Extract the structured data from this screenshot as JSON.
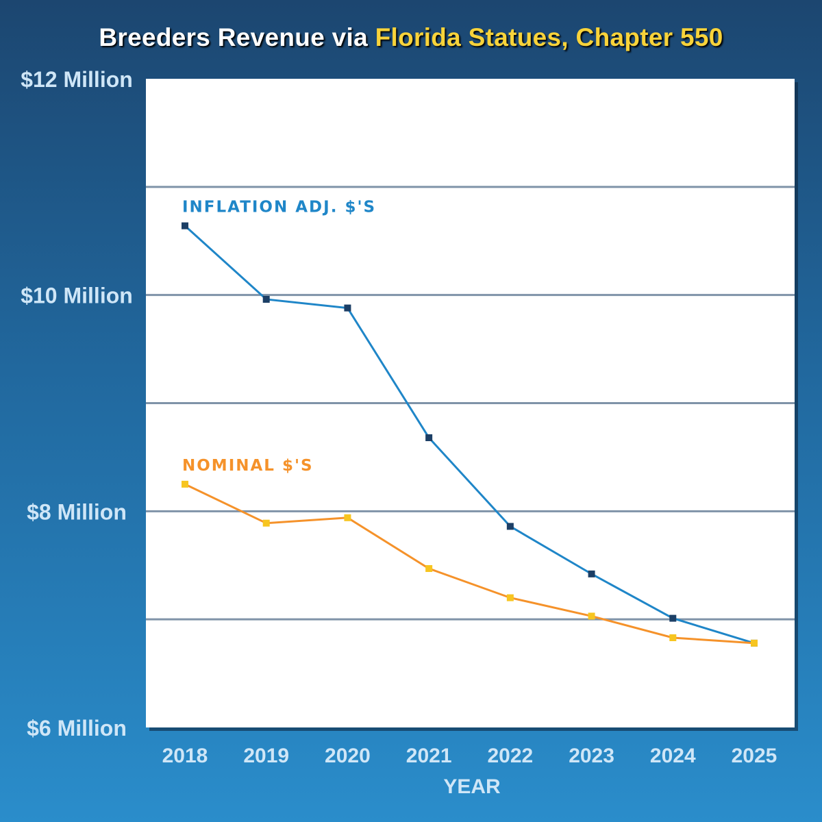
{
  "chart_data": {
    "type": "line",
    "title": "Breeders Revenue via",
    "title_highlight": "Florida Statues, Chapter 550",
    "xlabel": "YEAR",
    "ylabel": "",
    "x": [
      "2018",
      "2019",
      "2020",
      "2021",
      "2022",
      "2023",
      "2024",
      "2025"
    ],
    "ylim": [
      6,
      12
    ],
    "ytick_labels": [
      {
        "value": 12,
        "label": "$12 Million"
      },
      {
        "value": 10,
        "label": "$10 Million"
      },
      {
        "value": 8,
        "label": "$8 Million"
      },
      {
        "value": 6,
        "label": "$6 Million"
      }
    ],
    "gridlines": [
      7,
      8,
      9,
      10,
      11
    ],
    "grid": true,
    "series": [
      {
        "name": "INFLATION ADJ. $'S",
        "line_color": "#1f86c8",
        "marker_color": "#1c3f66",
        "values": [
          10.64,
          9.96,
          9.88,
          8.68,
          7.86,
          7.42,
          7.01,
          6.78
        ]
      },
      {
        "name": "NOMINAL $'S",
        "line_color": "#f5922a",
        "marker_color": "#f7c520",
        "values": [
          8.25,
          7.89,
          7.94,
          7.47,
          7.2,
          7.03,
          6.83,
          6.78
        ]
      }
    ]
  }
}
